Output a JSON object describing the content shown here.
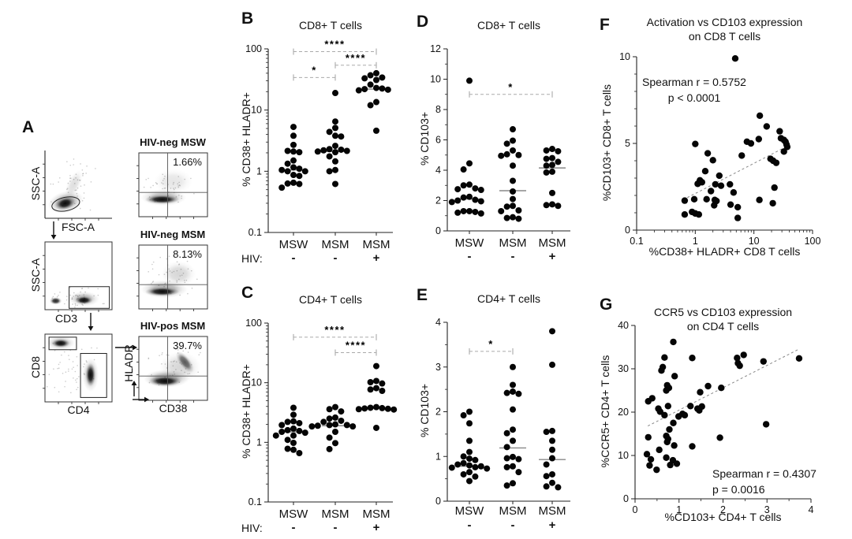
{
  "chart_data": [
    {
      "panel": "A",
      "type": "flow-gating",
      "gating": [
        {
          "y": "SSC-A",
          "x": "FSC-A"
        },
        {
          "y": "SSC-A",
          "x": "CD3"
        },
        {
          "y": "CD8",
          "x": "CD4"
        }
      ],
      "quadrants": {
        "ylabel": "HLADR",
        "xlabel": "CD38",
        "plots": [
          {
            "title": "HIV-neg MSW",
            "percent": "1.66%"
          },
          {
            "title": "HIV-neg MSM",
            "percent": "8.13%"
          },
          {
            "title": "HIV-pos MSM",
            "percent": "39.7%"
          }
        ]
      }
    },
    {
      "panel": "B",
      "type": "dot-plot",
      "title": "CD8+ T cells",
      "ylabel": "% CD38+ HLADR+",
      "yscale": "log",
      "ylim": [
        0.1,
        100
      ],
      "yticks": [
        100,
        10,
        1,
        0.1
      ],
      "categories": [
        "MSW",
        "MSM",
        "MSM"
      ],
      "hiv_label": "HIV:",
      "hiv": [
        "-",
        "-",
        "+"
      ],
      "series": [
        {
          "group": "MSW",
          "hiv": "-",
          "median": 1.05,
          "values": [
            5.3,
            3.8,
            2.7,
            2.15,
            2.1,
            2.05,
            1.5,
            1.33,
            1.16,
            1.1,
            1.05,
            1.0,
            1.0,
            0.87,
            0.84,
            0.65,
            0.63,
            0.62,
            0.54
          ]
        },
        {
          "group": "MSM",
          "hiv": "-",
          "median": 2.1,
          "values": [
            19,
            6.5,
            5.1,
            4.4,
            3.8,
            3.7,
            2.6,
            2.3,
            2.25,
            2.2,
            2.15,
            2.1,
            2.05,
            1.75,
            1.45,
            1.05,
            1.0,
            0.62
          ]
        },
        {
          "group": "MSM",
          "hiv": "+",
          "median": 22,
          "values": [
            40,
            37,
            34,
            33,
            31,
            26,
            23,
            22.5,
            22,
            21.5,
            21,
            13.5,
            12,
            4.6
          ]
        }
      ],
      "significance": [
        {
          "groups": [
            0,
            2
          ],
          "stars": "****",
          "y": 90
        },
        {
          "groups": [
            1,
            2
          ],
          "stars": "****",
          "y": 54
        },
        {
          "groups": [
            0,
            1
          ],
          "stars": "*",
          "y": 34
        }
      ]
    },
    {
      "panel": "C",
      "type": "dot-plot",
      "title": "CD4+ T cells",
      "ylabel": "% CD38+ HLADR+",
      "yscale": "log",
      "ylim": [
        0.1,
        100
      ],
      "yticks": [
        100,
        10,
        1,
        0.1
      ],
      "categories": [
        "MSW",
        "MSM",
        "MSM"
      ],
      "hiv_label": "HIV:",
      "hiv": [
        "-",
        "-",
        "+"
      ],
      "series": [
        {
          "group": "MSW",
          "hiv": "-",
          "median": 1.5,
          "values": [
            3.8,
            2.9,
            2.25,
            2.2,
            2.1,
            1.95,
            1.7,
            1.6,
            1.55,
            1.5,
            1.45,
            1.3,
            1.3,
            1.1,
            0.98,
            0.78,
            0.75,
            0.66
          ]
        },
        {
          "group": "MSM",
          "hiv": "-",
          "median": 1.9,
          "values": [
            3.9,
            3.6,
            3.3,
            2.6,
            2.5,
            2.3,
            2.2,
            2.0,
            1.95,
            1.95,
            1.9,
            1.85,
            1.85,
            1.5,
            1.2,
            0.97,
            0.77
          ]
        },
        {
          "group": "MSM",
          "hiv": "+",
          "median": 3.75,
          "values": [
            19,
            10.7,
            10.2,
            9.7,
            8.1,
            7.7,
            7.3,
            3.9,
            3.8,
            3.75,
            3.7,
            3.65,
            3.6,
            3.55,
            1.75
          ]
        }
      ],
      "significance": [
        {
          "groups": [
            0,
            2
          ],
          "stars": "****",
          "y": 58
        },
        {
          "groups": [
            1,
            2
          ],
          "stars": "****",
          "y": 32
        }
      ]
    },
    {
      "panel": "D",
      "type": "dot-plot",
      "title": "CD8+ T cells",
      "ylabel": "% CD103+",
      "yscale": "linear",
      "ylim": [
        0,
        12
      ],
      "yticks": [
        12,
        10,
        8,
        6,
        4,
        2,
        0
      ],
      "categories": [
        "MSW",
        "MSM",
        "MSM"
      ],
      "hiv_label": "",
      "hiv": [
        "-",
        "-",
        "+"
      ],
      "series": [
        {
          "group": "MSW",
          "hiv": "-",
          "median": 2.1,
          "values": [
            9.9,
            4.45,
            4.05,
            3.05,
            3.0,
            2.8,
            2.75,
            2.7,
            2.25,
            2.2,
            2.05,
            2.0,
            1.95,
            1.9,
            1.3,
            1.3,
            1.25,
            1.2,
            1.15
          ]
        },
        {
          "group": "MSM",
          "hiv": "-",
          "median": 2.65,
          "values": [
            6.7,
            5.95,
            5.75,
            5.3,
            5.05,
            5.0,
            4.95,
            4.3,
            3.3,
            2.6,
            2.1,
            1.65,
            1.6,
            1.35,
            1.3,
            0.9,
            0.85,
            0.8
          ]
        },
        {
          "group": "MSM",
          "hiv": "+",
          "median": 4.15,
          "values": [
            5.4,
            5.3,
            5.25,
            4.8,
            4.75,
            4.55,
            4.35,
            4.3,
            3.9,
            3.85,
            2.5,
            1.75,
            1.7,
            1.65
          ]
        }
      ],
      "significance": [
        {
          "groups": [
            0,
            2
          ],
          "stars": "*",
          "y": 9.0
        }
      ]
    },
    {
      "panel": "E",
      "type": "dot-plot",
      "title": "CD4+ T cells",
      "ylabel": "% CD103+",
      "yscale": "linear",
      "ylim": [
        0,
        4
      ],
      "yticks": [
        4,
        3,
        2,
        1,
        0
      ],
      "categories": [
        "MSW",
        "MSM",
        "MSM"
      ],
      "hiv_label": "",
      "hiv": [
        "-",
        "-",
        "+"
      ],
      "series": [
        {
          "group": "MSW",
          "hiv": "-",
          "median": 0.78,
          "values": [
            2.0,
            1.92,
            1.74,
            1.35,
            1.1,
            1.0,
            0.95,
            0.92,
            0.85,
            0.82,
            0.8,
            0.78,
            0.76,
            0.75,
            0.73,
            0.65,
            0.6,
            0.55,
            0.45
          ]
        },
        {
          "group": "MSM",
          "hiv": "-",
          "median": 1.19,
          "values": [
            3.0,
            2.6,
            2.45,
            2.42,
            2.4,
            2.05,
            1.6,
            1.52,
            1.35,
            1.21,
            0.99,
            0.96,
            0.94,
            0.78,
            0.76,
            0.65,
            0.4,
            0.35
          ]
        },
        {
          "group": "MSM",
          "hiv": "+",
          "median": 0.93,
          "values": [
            3.8,
            3.05,
            1.57,
            1.55,
            1.35,
            1.15,
            0.96,
            0.82,
            0.6,
            0.56,
            0.41,
            0.33,
            0.31
          ]
        }
      ],
      "significance": [
        {
          "groups": [
            0,
            1
          ],
          "stars": "*",
          "y": 3.35
        }
      ]
    },
    {
      "panel": "F",
      "type": "scatter",
      "title_line1": "Activation vs CD103 expression",
      "title_line2": "on CD8 T cells",
      "xlabel": "%CD38+ HLADR+ CD8 T cells",
      "ylabel": "%CD103+ CD8+ T cells",
      "xscale": "log",
      "xlim": [
        0.1,
        100
      ],
      "xticks": [
        0.1,
        1,
        10,
        100
      ],
      "yscale": "linear",
      "ylim": [
        0,
        10
      ],
      "yticks": [
        0,
        5,
        10
      ],
      "stats_line1": "Spearman r = 0.5752",
      "stats_line2": "p < 0.0001",
      "trendline": {
        "x1": 0.62,
        "y1": 1.75,
        "x2": 40,
        "y2": 4.9
      },
      "points": [
        [
          0.66,
          1.7
        ],
        [
          0.66,
          0.9
        ],
        [
          0.88,
          1.05
        ],
        [
          0.96,
          1.78
        ],
        [
          1.0,
          0.96
        ],
        [
          1.0,
          4.97
        ],
        [
          1.1,
          2.67
        ],
        [
          1.15,
          0.9
        ],
        [
          1.2,
          2.87
        ],
        [
          1.3,
          2.76
        ],
        [
          1.48,
          3.4
        ],
        [
          1.56,
          1.78
        ],
        [
          1.63,
          4.43
        ],
        [
          1.85,
          2.25
        ],
        [
          2.0,
          4.03
        ],
        [
          2.1,
          1.43
        ],
        [
          2.15,
          1.74
        ],
        [
          2.2,
          2.64
        ],
        [
          2.3,
          1.68
        ],
        [
          2.57,
          3.14
        ],
        [
          2.75,
          2.56
        ],
        [
          3.9,
          2.64
        ],
        [
          4.0,
          1.47
        ],
        [
          4.5,
          2.17
        ],
        [
          4.8,
          9.9
        ],
        [
          5.3,
          1.32
        ],
        [
          5.3,
          0.7
        ],
        [
          6.2,
          4.3
        ],
        [
          7.6,
          5.1
        ],
        [
          8.9,
          5.0
        ],
        [
          12.1,
          5.25
        ],
        [
          12.6,
          6.6
        ],
        [
          12.4,
          1.74
        ],
        [
          16.5,
          5.98
        ],
        [
          19.2,
          4.11
        ],
        [
          21.0,
          1.55
        ],
        [
          21.3,
          4.0
        ],
        [
          22.4,
          2.45
        ],
        [
          24.0,
          3.88
        ],
        [
          27.5,
          5.7
        ],
        [
          28.9,
          5.3
        ],
        [
          32.5,
          5.2
        ],
        [
          32.5,
          4.53
        ],
        [
          34.6,
          5.1
        ],
        [
          36.0,
          4.94
        ],
        [
          37.0,
          4.8
        ]
      ]
    },
    {
      "panel": "G",
      "type": "scatter",
      "title_line1": "CCR5 vs CD103 expression",
      "title_line2": "on CD4 T cells",
      "xlabel": "%CD103+ CD4+ T cells",
      "ylabel": "%CCR5+ CD4+ T cells",
      "xscale": "linear",
      "xlim": [
        0,
        4
      ],
      "xticks": [
        0,
        1,
        2,
        3,
        4
      ],
      "yscale": "linear",
      "ylim": [
        0,
        40
      ],
      "yticks": [
        0,
        10,
        20,
        30,
        40
      ],
      "stats_line1": "Spearman r = 0.4307",
      "stats_line2": "p = 0.0016",
      "trendline": {
        "x1": 0.29,
        "y1": 16.8,
        "x2": 3.72,
        "y2": 34.5
      },
      "points": [
        [
          0.87,
          36.2
        ],
        [
          0.67,
          32.6
        ],
        [
          1.3,
          32.5
        ],
        [
          2.32,
          32.5
        ],
        [
          2.47,
          33.2
        ],
        [
          2.92,
          31.7
        ],
        [
          3.73,
          32.4
        ],
        [
          0.63,
          30.4
        ],
        [
          0.6,
          29.6
        ],
        [
          2.34,
          31.3
        ],
        [
          2.38,
          30.7
        ],
        [
          0.9,
          28.3
        ],
        [
          0.73,
          26.2
        ],
        [
          0.77,
          25.6
        ],
        [
          0.71,
          25.0
        ],
        [
          1.66,
          26.0
        ],
        [
          1.48,
          24.6
        ],
        [
          1.96,
          25.6
        ],
        [
          0.3,
          22.5
        ],
        [
          0.39,
          23.2
        ],
        [
          0.53,
          20.8
        ],
        [
          0.57,
          20.1
        ],
        [
          0.75,
          21.4
        ],
        [
          1.26,
          21.4
        ],
        [
          1.42,
          20.8
        ],
        [
          1.46,
          20.4
        ],
        [
          1.52,
          21.3
        ],
        [
          1.08,
          19.6
        ],
        [
          1.13,
          19.3
        ],
        [
          0.99,
          19.0
        ],
        [
          0.67,
          19.3
        ],
        [
          0.87,
          17.5
        ],
        [
          2.98,
          17.2
        ],
        [
          0.78,
          16.0
        ],
        [
          0.3,
          14.2
        ],
        [
          0.71,
          14.5
        ],
        [
          0.75,
          13.8
        ],
        [
          1.93,
          14.1
        ],
        [
          0.55,
          11.3
        ],
        [
          0.73,
          13.1
        ],
        [
          0.89,
          12.3
        ],
        [
          1.3,
          12.1
        ],
        [
          0.27,
          10.3
        ],
        [
          0.36,
          9.1
        ],
        [
          0.71,
          9.5
        ],
        [
          0.86,
          8.9
        ],
        [
          0.95,
          8.1
        ],
        [
          0.33,
          7.7
        ],
        [
          0.49,
          6.7
        ],
        [
          0.8,
          7.8
        ]
      ]
    }
  ]
}
